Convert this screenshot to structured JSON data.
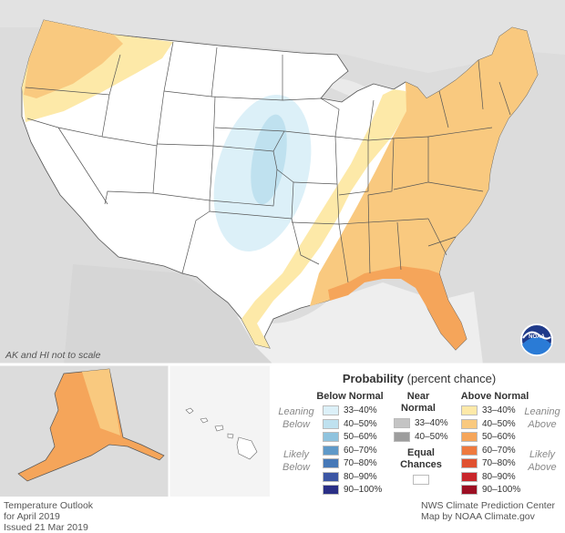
{
  "map_note": "AK and HI not to scale",
  "legend": {
    "title_bold": "Probability",
    "title_rest": " (percent chance)",
    "below": {
      "heading": "Below Normal",
      "leaning": [
        "Leaning",
        "Below"
      ],
      "likely": [
        "Likely",
        "Below"
      ],
      "items": [
        {
          "label": "33–40%",
          "color": "#dcf0f8"
        },
        {
          "label": "40–50%",
          "color": "#bfe1ef"
        },
        {
          "label": "50–60%",
          "color": "#8fc3de"
        },
        {
          "label": "60–70%",
          "color": "#5f99c8"
        },
        {
          "label": "70–80%",
          "color": "#4678b7"
        },
        {
          "label": "80–90%",
          "color": "#3c56a4"
        },
        {
          "label": "90–100%",
          "color": "#2a2f86"
        }
      ]
    },
    "near": {
      "heading": [
        "Near",
        "Normal"
      ],
      "items": [
        {
          "label": "33–40%",
          "color": "#c4c4c4"
        },
        {
          "label": "40–50%",
          "color": "#9d9d9d"
        }
      ],
      "equal": [
        "Equal",
        "Chances"
      ],
      "equal_color": "#ffffff"
    },
    "above": {
      "heading": "Above Normal",
      "leaning": [
        "Leaning",
        "Above"
      ],
      "likely": [
        "Likely",
        "Above"
      ],
      "items": [
        {
          "label": "33–40%",
          "color": "#fde9a8"
        },
        {
          "label": "40–50%",
          "color": "#f9c97f"
        },
        {
          "label": "50–60%",
          "color": "#f5a55a"
        },
        {
          "label": "60–70%",
          "color": "#ee7a3f"
        },
        {
          "label": "70–80%",
          "color": "#e0502f"
        },
        {
          "label": "80–90%",
          "color": "#c8262b"
        },
        {
          "label": "90–100%",
          "color": "#9c0f23"
        }
      ]
    }
  },
  "footer_left": [
    "Temperature Outlook",
    "for April 2019",
    "Issued 21 Mar 2019"
  ],
  "footer_right": [
    "NWS Climate Prediction Center",
    "Map by NOAA Climate.gov"
  ],
  "logo_text": "NOAA",
  "colors": {
    "background_land": "#dcdcdc",
    "us_land": "#ffffff",
    "state_border": "#555555"
  }
}
